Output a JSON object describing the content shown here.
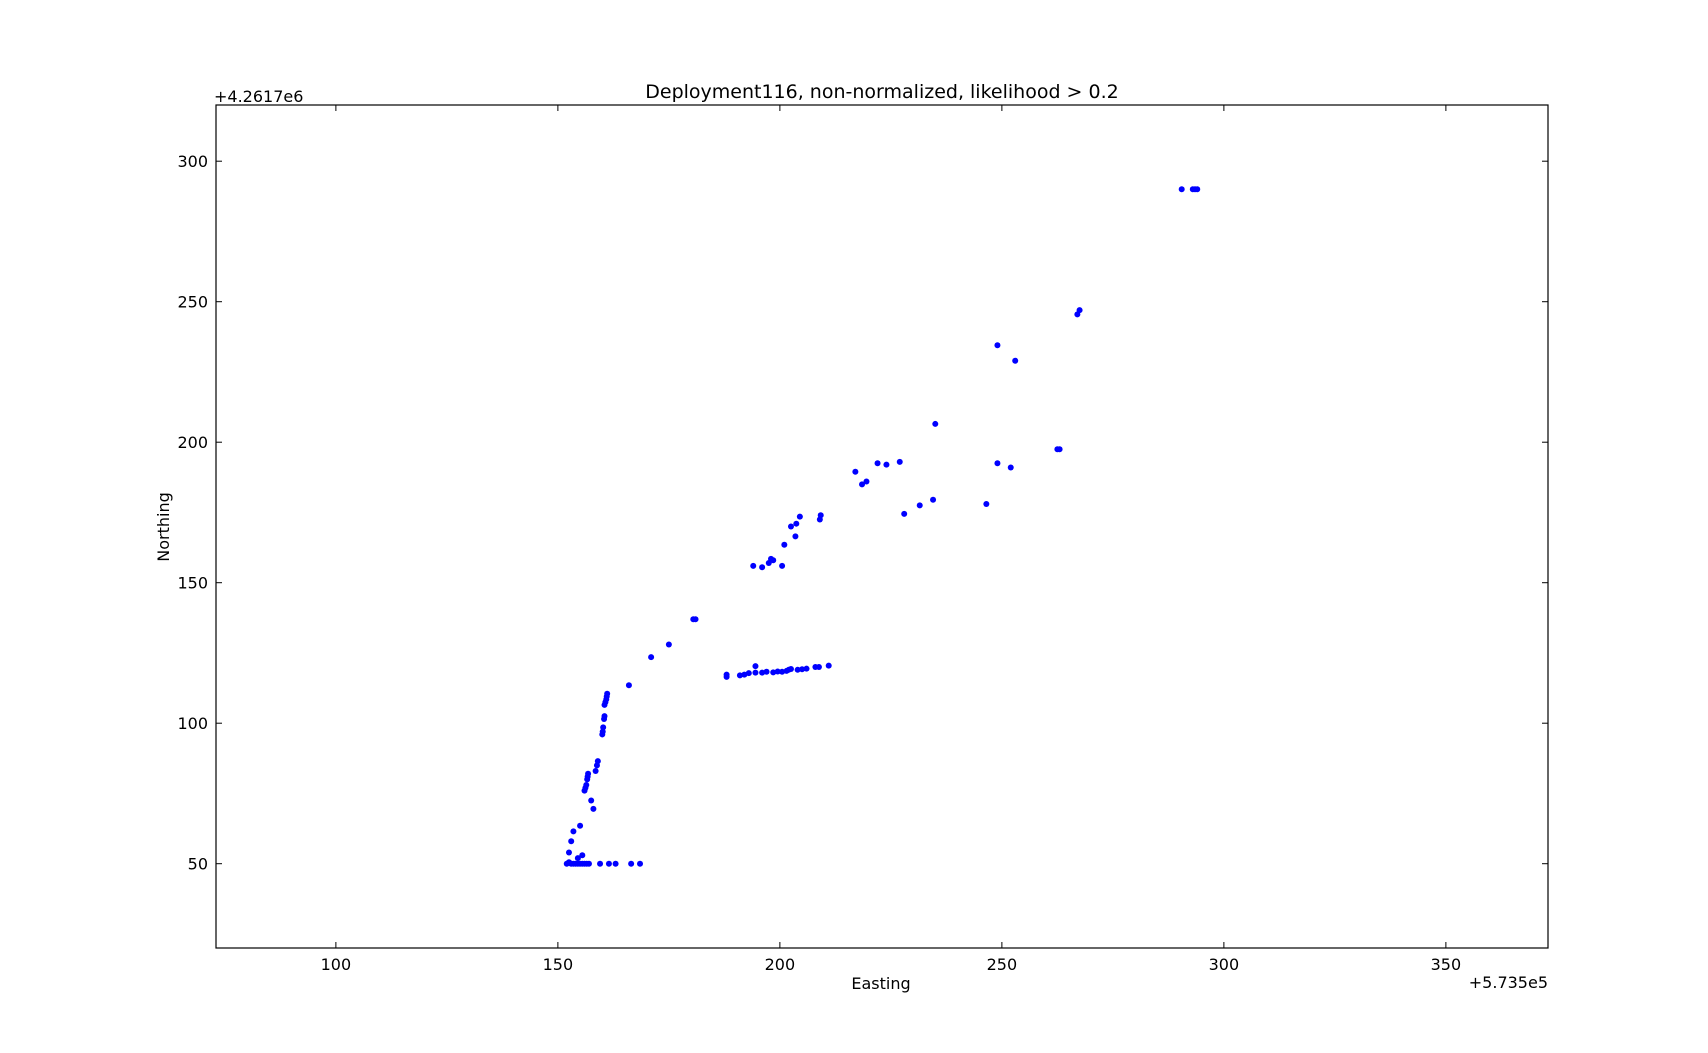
{
  "chart_data": {
    "type": "scatter",
    "title": "Deployment116, non-normalized, likelihood > 0.2",
    "xlabel": "Easting",
    "ylabel": "Northing",
    "x_offset_label": "+5.735e5",
    "y_offset_label": "+4.2617e6",
    "xlim": [
      73,
      373
    ],
    "ylim": [
      20,
      320
    ],
    "xticks": [
      100,
      150,
      200,
      250,
      300,
      350
    ],
    "yticks": [
      50,
      100,
      150,
      200,
      250,
      300
    ],
    "xtick_labels": [
      "100",
      "150",
      "200",
      "250",
      "300",
      "350"
    ],
    "ytick_labels": [
      "50",
      "100",
      "150",
      "200",
      "250",
      "300"
    ],
    "grid": false,
    "marker_color": "#0000ff",
    "series": [
      {
        "points": [
          [
            152,
            50
          ],
          [
            152.5,
            50.5
          ],
          [
            153,
            50
          ],
          [
            153.5,
            50
          ],
          [
            154,
            50
          ],
          [
            154.5,
            50
          ],
          [
            155,
            50
          ],
          [
            155.5,
            50
          ],
          [
            156,
            50
          ],
          [
            156.5,
            50
          ],
          [
            157,
            50
          ],
          [
            159.5,
            50
          ],
          [
            161.5,
            50
          ],
          [
            163,
            50
          ],
          [
            166.5,
            50
          ],
          [
            168.5,
            50
          ],
          [
            152.5,
            54
          ],
          [
            155.5,
            53
          ],
          [
            154.5,
            52
          ],
          [
            153,
            58
          ],
          [
            153.5,
            61.5
          ],
          [
            155,
            63.5
          ],
          [
            158,
            69.5
          ],
          [
            157.5,
            72.5
          ],
          [
            156,
            76
          ],
          [
            156.2,
            77
          ],
          [
            156.4,
            78
          ],
          [
            156.6,
            80
          ],
          [
            156.7,
            81
          ],
          [
            156.8,
            82
          ],
          [
            158.5,
            83
          ],
          [
            158.8,
            85
          ],
          [
            159,
            86.5
          ],
          [
            160,
            96
          ],
          [
            160.1,
            97
          ],
          [
            160.2,
            98.5
          ],
          [
            160.4,
            101.5
          ],
          [
            160.5,
            102.5
          ],
          [
            160.5,
            106.5
          ],
          [
            160.7,
            107.5
          ],
          [
            160.9,
            108.5
          ],
          [
            161,
            109.5
          ],
          [
            161.1,
            110.5
          ],
          [
            166,
            113.5
          ],
          [
            171,
            123.5
          ],
          [
            175,
            128
          ],
          [
            180.5,
            137
          ],
          [
            181,
            137
          ],
          [
            188,
            116.5
          ],
          [
            188,
            117.3
          ],
          [
            191,
            117
          ],
          [
            192,
            117.3
          ],
          [
            193,
            117.8
          ],
          [
            194.5,
            118
          ],
          [
            196,
            118
          ],
          [
            197,
            118.3
          ],
          [
            198.5,
            118.1
          ],
          [
            199.5,
            118.4
          ],
          [
            200.5,
            118.3
          ],
          [
            201.5,
            118.6
          ],
          [
            202,
            119
          ],
          [
            202.5,
            119.3
          ],
          [
            204,
            119
          ],
          [
            205,
            119.2
          ],
          [
            206,
            119.4
          ],
          [
            208,
            120
          ],
          [
            208.8,
            120
          ],
          [
            211,
            120.5
          ],
          [
            194.5,
            120.3
          ],
          [
            194,
            156
          ],
          [
            196,
            155.5
          ],
          [
            197.5,
            157
          ],
          [
            198,
            158.5
          ],
          [
            198.5,
            158
          ],
          [
            200.5,
            156
          ],
          [
            201,
            163.5
          ],
          [
            202.5,
            170
          ],
          [
            203.5,
            166.5
          ],
          [
            203.7,
            171
          ],
          [
            204.5,
            173.5
          ],
          [
            209,
            172.5
          ],
          [
            209.2,
            174
          ],
          [
            217,
            189.5
          ],
          [
            218.5,
            185
          ],
          [
            219.5,
            186
          ],
          [
            222,
            192.5
          ],
          [
            224,
            192
          ],
          [
            227,
            193
          ],
          [
            228,
            174.5
          ],
          [
            231.5,
            177.5
          ],
          [
            234.5,
            179.5
          ],
          [
            235,
            206.5
          ],
          [
            246.5,
            178
          ],
          [
            249,
            192.5
          ],
          [
            249,
            234.5
          ],
          [
            252,
            191
          ],
          [
            253,
            229
          ],
          [
            262.5,
            197.5
          ],
          [
            263,
            197.5
          ],
          [
            267,
            245.5
          ],
          [
            267.5,
            247
          ],
          [
            290.5,
            290
          ],
          [
            293,
            290
          ],
          [
            293.5,
            290
          ],
          [
            294,
            290
          ]
        ]
      }
    ]
  }
}
